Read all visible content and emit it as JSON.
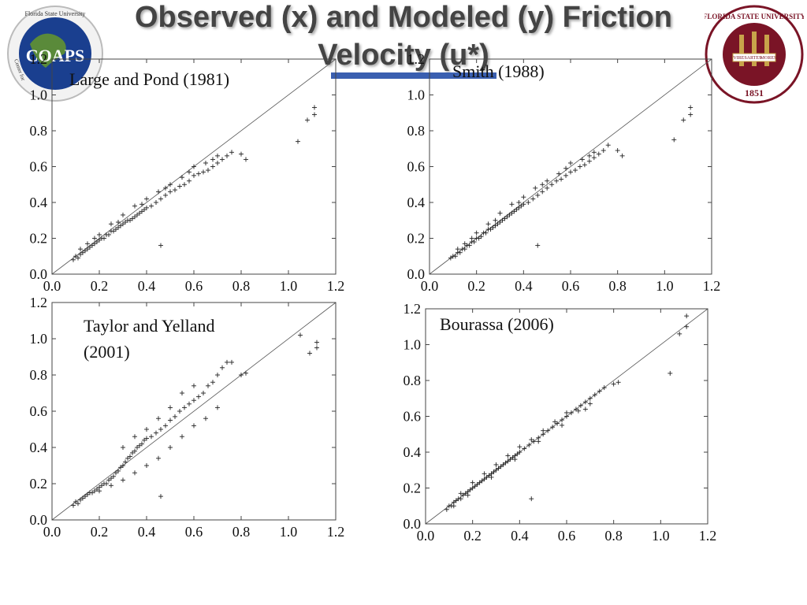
{
  "slide": {
    "title_line1": "Observed (x) and Modeled (y) Friction",
    "title_line2": "Velocity (u*)"
  },
  "logos": {
    "left": {
      "text": "COAPS",
      "ring_text": "Florida State University",
      "side_text": "Center for",
      "colors": {
        "ocean": "#1a3f8f",
        "land": "#5a8a3a"
      }
    },
    "right": {
      "ring_text": "FLORIDA STATE UNIVERSITY",
      "year": "1851",
      "banner": [
        "VIRES",
        "ARTES",
        "MORES"
      ],
      "colors": {
        "ring": "#7a1426",
        "field": "#c8a34a"
      }
    }
  },
  "colors": {
    "marker": "#222222",
    "diagonal": "#555555",
    "axis": "#444444",
    "title_bar": "#3a5fb0"
  },
  "chart_data": [
    {
      "type": "scatter",
      "title": "Large and Pond (1981)",
      "xlim": [
        0,
        1.2
      ],
      "ylim": [
        0,
        1.2
      ],
      "xticks": [
        "0.0",
        "0.2",
        "0.4",
        "0.6",
        "0.8",
        "1.0",
        "1.2"
      ],
      "yticks": [
        "0.0",
        "0.2",
        "0.4",
        "0.6",
        "0.8",
        "1.0",
        "1.2"
      ],
      "reference_line": "y = x",
      "grid": false,
      "points": [
        [
          0.09,
          0.08
        ],
        [
          0.1,
          0.1
        ],
        [
          0.11,
          0.09
        ],
        [
          0.12,
          0.11
        ],
        [
          0.13,
          0.12
        ],
        [
          0.14,
          0.13
        ],
        [
          0.15,
          0.14
        ],
        [
          0.16,
          0.15
        ],
        [
          0.17,
          0.16
        ],
        [
          0.18,
          0.17
        ],
        [
          0.19,
          0.18
        ],
        [
          0.2,
          0.19
        ],
        [
          0.21,
          0.2
        ],
        [
          0.22,
          0.2
        ],
        [
          0.23,
          0.22
        ],
        [
          0.24,
          0.22
        ],
        [
          0.25,
          0.24
        ],
        [
          0.26,
          0.24
        ],
        [
          0.27,
          0.25
        ],
        [
          0.28,
          0.26
        ],
        [
          0.29,
          0.27
        ],
        [
          0.3,
          0.28
        ],
        [
          0.31,
          0.29
        ],
        [
          0.32,
          0.3
        ],
        [
          0.33,
          0.3
        ],
        [
          0.34,
          0.31
        ],
        [
          0.35,
          0.32
        ],
        [
          0.36,
          0.33
        ],
        [
          0.37,
          0.34
        ],
        [
          0.38,
          0.35
        ],
        [
          0.39,
          0.36
        ],
        [
          0.4,
          0.37
        ],
        [
          0.42,
          0.38
        ],
        [
          0.44,
          0.4
        ],
        [
          0.46,
          0.42
        ],
        [
          0.48,
          0.44
        ],
        [
          0.5,
          0.46
        ],
        [
          0.52,
          0.47
        ],
        [
          0.54,
          0.49
        ],
        [
          0.56,
          0.5
        ],
        [
          0.58,
          0.52
        ],
        [
          0.6,
          0.55
        ],
        [
          0.62,
          0.56
        ],
        [
          0.64,
          0.57
        ],
        [
          0.66,
          0.58
        ],
        [
          0.68,
          0.6
        ],
        [
          0.7,
          0.62
        ],
        [
          0.72,
          0.64
        ],
        [
          0.74,
          0.66
        ],
        [
          0.76,
          0.68
        ],
        [
          0.8,
          0.67
        ],
        [
          0.82,
          0.64
        ],
        [
          0.46,
          0.16
        ],
        [
          1.04,
          0.74
        ],
        [
          1.08,
          0.86
        ],
        [
          1.11,
          0.89
        ],
        [
          1.11,
          0.93
        ],
        [
          0.15,
          0.17
        ],
        [
          0.2,
          0.22
        ],
        [
          0.25,
          0.28
        ],
        [
          0.3,
          0.33
        ],
        [
          0.35,
          0.38
        ],
        [
          0.4,
          0.42
        ],
        [
          0.45,
          0.46
        ],
        [
          0.5,
          0.5
        ],
        [
          0.55,
          0.54
        ],
        [
          0.6,
          0.6
        ],
        [
          0.65,
          0.62
        ],
        [
          0.7,
          0.66
        ],
        [
          0.12,
          0.14
        ],
        [
          0.18,
          0.2
        ],
        [
          0.28,
          0.29
        ],
        [
          0.38,
          0.39
        ],
        [
          0.48,
          0.48
        ],
        [
          0.58,
          0.57
        ],
        [
          0.68,
          0.64
        ]
      ]
    },
    {
      "type": "scatter",
      "title": "Smith (1988)",
      "xlim": [
        0,
        1.2
      ],
      "ylim": [
        0,
        1.2
      ],
      "xticks": [
        "0.0",
        "0.2",
        "0.4",
        "0.6",
        "0.8",
        "1.0",
        "1.2"
      ],
      "yticks": [
        "0.0",
        "0.2",
        "0.4",
        "0.6",
        "0.8",
        "1.0",
        "1.2"
      ],
      "reference_line": "y = x",
      "grid": false,
      "points": [
        [
          0.09,
          0.09
        ],
        [
          0.1,
          0.1
        ],
        [
          0.11,
          0.1
        ],
        [
          0.12,
          0.12
        ],
        [
          0.13,
          0.12
        ],
        [
          0.14,
          0.14
        ],
        [
          0.15,
          0.14
        ],
        [
          0.16,
          0.16
        ],
        [
          0.17,
          0.16
        ],
        [
          0.18,
          0.18
        ],
        [
          0.19,
          0.18
        ],
        [
          0.2,
          0.2
        ],
        [
          0.21,
          0.2
        ],
        [
          0.22,
          0.21
        ],
        [
          0.23,
          0.23
        ],
        [
          0.24,
          0.23
        ],
        [
          0.25,
          0.25
        ],
        [
          0.26,
          0.25
        ],
        [
          0.27,
          0.26
        ],
        [
          0.28,
          0.27
        ],
        [
          0.29,
          0.28
        ],
        [
          0.3,
          0.29
        ],
        [
          0.31,
          0.3
        ],
        [
          0.32,
          0.31
        ],
        [
          0.33,
          0.32
        ],
        [
          0.34,
          0.33
        ],
        [
          0.35,
          0.34
        ],
        [
          0.36,
          0.35
        ],
        [
          0.37,
          0.36
        ],
        [
          0.38,
          0.37
        ],
        [
          0.39,
          0.38
        ],
        [
          0.4,
          0.39
        ],
        [
          0.42,
          0.4
        ],
        [
          0.44,
          0.42
        ],
        [
          0.46,
          0.44
        ],
        [
          0.48,
          0.46
        ],
        [
          0.5,
          0.48
        ],
        [
          0.52,
          0.5
        ],
        [
          0.54,
          0.52
        ],
        [
          0.56,
          0.53
        ],
        [
          0.58,
          0.55
        ],
        [
          0.6,
          0.57
        ],
        [
          0.62,
          0.58
        ],
        [
          0.64,
          0.6
        ],
        [
          0.66,
          0.61
        ],
        [
          0.68,
          0.63
        ],
        [
          0.7,
          0.65
        ],
        [
          0.72,
          0.67
        ],
        [
          0.74,
          0.69
        ],
        [
          0.76,
          0.72
        ],
        [
          0.8,
          0.69
        ],
        [
          0.82,
          0.66
        ],
        [
          0.46,
          0.16
        ],
        [
          1.04,
          0.75
        ],
        [
          1.08,
          0.86
        ],
        [
          1.11,
          0.89
        ],
        [
          1.11,
          0.93
        ],
        [
          0.15,
          0.17
        ],
        [
          0.2,
          0.23
        ],
        [
          0.25,
          0.28
        ],
        [
          0.3,
          0.34
        ],
        [
          0.35,
          0.39
        ],
        [
          0.4,
          0.43
        ],
        [
          0.45,
          0.48
        ],
        [
          0.5,
          0.52
        ],
        [
          0.55,
          0.56
        ],
        [
          0.6,
          0.62
        ],
        [
          0.65,
          0.64
        ],
        [
          0.7,
          0.68
        ],
        [
          0.12,
          0.14
        ],
        [
          0.18,
          0.2
        ],
        [
          0.28,
          0.3
        ],
        [
          0.38,
          0.4
        ],
        [
          0.48,
          0.5
        ],
        [
          0.58,
          0.59
        ],
        [
          0.68,
          0.66
        ]
      ]
    },
    {
      "type": "scatter",
      "title": "Taylor and Yelland (2001)",
      "title_lines": [
        "Taylor and Yelland",
        "(2001)"
      ],
      "xlim": [
        0,
        1.2
      ],
      "ylim": [
        0,
        1.2
      ],
      "xticks": [
        "0.0",
        "0.2",
        "0.4",
        "0.6",
        "0.8",
        "1.0",
        "1.2"
      ],
      "yticks": [
        "0.0",
        "0.2",
        "0.4",
        "0.6",
        "0.8",
        "1.0",
        "1.2"
      ],
      "reference_line": "y = x",
      "grid": false,
      "points": [
        [
          0.09,
          0.08
        ],
        [
          0.1,
          0.1
        ],
        [
          0.11,
          0.09
        ],
        [
          0.12,
          0.11
        ],
        [
          0.13,
          0.12
        ],
        [
          0.14,
          0.13
        ],
        [
          0.15,
          0.14
        ],
        [
          0.16,
          0.15
        ],
        [
          0.17,
          0.15
        ],
        [
          0.18,
          0.16
        ],
        [
          0.19,
          0.17
        ],
        [
          0.2,
          0.18
        ],
        [
          0.21,
          0.19
        ],
        [
          0.22,
          0.2
        ],
        [
          0.23,
          0.2
        ],
        [
          0.24,
          0.22
        ],
        [
          0.25,
          0.23
        ],
        [
          0.26,
          0.24
        ],
        [
          0.27,
          0.26
        ],
        [
          0.28,
          0.27
        ],
        [
          0.29,
          0.29
        ],
        [
          0.3,
          0.3
        ],
        [
          0.31,
          0.32
        ],
        [
          0.32,
          0.34
        ],
        [
          0.33,
          0.35
        ],
        [
          0.34,
          0.37
        ],
        [
          0.35,
          0.38
        ],
        [
          0.36,
          0.4
        ],
        [
          0.37,
          0.41
        ],
        [
          0.38,
          0.42
        ],
        [
          0.39,
          0.44
        ],
        [
          0.4,
          0.45
        ],
        [
          0.42,
          0.46
        ],
        [
          0.44,
          0.48
        ],
        [
          0.46,
          0.5
        ],
        [
          0.48,
          0.52
        ],
        [
          0.5,
          0.55
        ],
        [
          0.52,
          0.57
        ],
        [
          0.54,
          0.6
        ],
        [
          0.56,
          0.62
        ],
        [
          0.58,
          0.64
        ],
        [
          0.6,
          0.66
        ],
        [
          0.62,
          0.68
        ],
        [
          0.64,
          0.7
        ],
        [
          0.66,
          0.74
        ],
        [
          0.68,
          0.76
        ],
        [
          0.7,
          0.8
        ],
        [
          0.72,
          0.84
        ],
        [
          0.74,
          0.87
        ],
        [
          0.76,
          0.87
        ],
        [
          0.8,
          0.8
        ],
        [
          0.82,
          0.81
        ],
        [
          0.46,
          0.13
        ],
        [
          1.05,
          1.02
        ],
        [
          1.09,
          0.92
        ],
        [
          1.12,
          0.95
        ],
        [
          1.12,
          0.98
        ],
        [
          0.2,
          0.16
        ],
        [
          0.25,
          0.19
        ],
        [
          0.3,
          0.22
        ],
        [
          0.35,
          0.26
        ],
        [
          0.4,
          0.3
        ],
        [
          0.45,
          0.34
        ],
        [
          0.5,
          0.4
        ],
        [
          0.55,
          0.46
        ],
        [
          0.6,
          0.52
        ],
        [
          0.65,
          0.56
        ],
        [
          0.7,
          0.62
        ],
        [
          0.3,
          0.4
        ],
        [
          0.35,
          0.46
        ],
        [
          0.4,
          0.5
        ],
        [
          0.45,
          0.56
        ],
        [
          0.5,
          0.62
        ],
        [
          0.55,
          0.7
        ],
        [
          0.6,
          0.74
        ]
      ]
    },
    {
      "type": "scatter",
      "title": "Bourassa (2006)",
      "xlim": [
        0,
        1.2
      ],
      "ylim": [
        0,
        1.2
      ],
      "xticks": [
        "0.0",
        "0.2",
        "0.4",
        "0.6",
        "0.8",
        "1.0",
        "1.2"
      ],
      "yticks": [
        "0.0",
        "0.2",
        "0.4",
        "0.6",
        "0.8",
        "1.0",
        "1.2"
      ],
      "reference_line": "y = x",
      "grid": false,
      "points": [
        [
          0.09,
          0.08
        ],
        [
          0.1,
          0.1
        ],
        [
          0.11,
          0.1
        ],
        [
          0.12,
          0.12
        ],
        [
          0.13,
          0.13
        ],
        [
          0.14,
          0.14
        ],
        [
          0.15,
          0.14
        ],
        [
          0.16,
          0.16
        ],
        [
          0.17,
          0.17
        ],
        [
          0.18,
          0.18
        ],
        [
          0.19,
          0.19
        ],
        [
          0.2,
          0.2
        ],
        [
          0.21,
          0.21
        ],
        [
          0.22,
          0.22
        ],
        [
          0.23,
          0.23
        ],
        [
          0.24,
          0.24
        ],
        [
          0.25,
          0.25
        ],
        [
          0.26,
          0.26
        ],
        [
          0.27,
          0.27
        ],
        [
          0.28,
          0.28
        ],
        [
          0.29,
          0.29
        ],
        [
          0.3,
          0.3
        ],
        [
          0.31,
          0.31
        ],
        [
          0.32,
          0.32
        ],
        [
          0.33,
          0.33
        ],
        [
          0.34,
          0.34
        ],
        [
          0.35,
          0.35
        ],
        [
          0.36,
          0.36
        ],
        [
          0.37,
          0.37
        ],
        [
          0.38,
          0.38
        ],
        [
          0.39,
          0.39
        ],
        [
          0.4,
          0.4
        ],
        [
          0.42,
          0.42
        ],
        [
          0.44,
          0.44
        ],
        [
          0.46,
          0.46
        ],
        [
          0.48,
          0.48
        ],
        [
          0.5,
          0.5
        ],
        [
          0.52,
          0.52
        ],
        [
          0.54,
          0.54
        ],
        [
          0.56,
          0.56
        ],
        [
          0.58,
          0.58
        ],
        [
          0.6,
          0.6
        ],
        [
          0.62,
          0.62
        ],
        [
          0.64,
          0.64
        ],
        [
          0.66,
          0.66
        ],
        [
          0.68,
          0.68
        ],
        [
          0.7,
          0.7
        ],
        [
          0.72,
          0.72
        ],
        [
          0.74,
          0.74
        ],
        [
          0.76,
          0.76
        ],
        [
          0.8,
          0.78
        ],
        [
          0.82,
          0.79
        ],
        [
          0.45,
          0.14
        ],
        [
          1.04,
          0.84
        ],
        [
          1.08,
          1.06
        ],
        [
          1.11,
          1.1
        ],
        [
          1.11,
          1.16
        ],
        [
          0.15,
          0.17
        ],
        [
          0.2,
          0.23
        ],
        [
          0.25,
          0.28
        ],
        [
          0.3,
          0.33
        ],
        [
          0.35,
          0.38
        ],
        [
          0.4,
          0.43
        ],
        [
          0.45,
          0.47
        ],
        [
          0.5,
          0.52
        ],
        [
          0.55,
          0.57
        ],
        [
          0.6,
          0.62
        ],
        [
          0.65,
          0.63
        ],
        [
          0.7,
          0.67
        ],
        [
          0.12,
          0.1
        ],
        [
          0.18,
          0.16
        ],
        [
          0.28,
          0.26
        ],
        [
          0.38,
          0.36
        ],
        [
          0.48,
          0.46
        ],
        [
          0.58,
          0.55
        ],
        [
          0.68,
          0.64
        ]
      ]
    }
  ]
}
